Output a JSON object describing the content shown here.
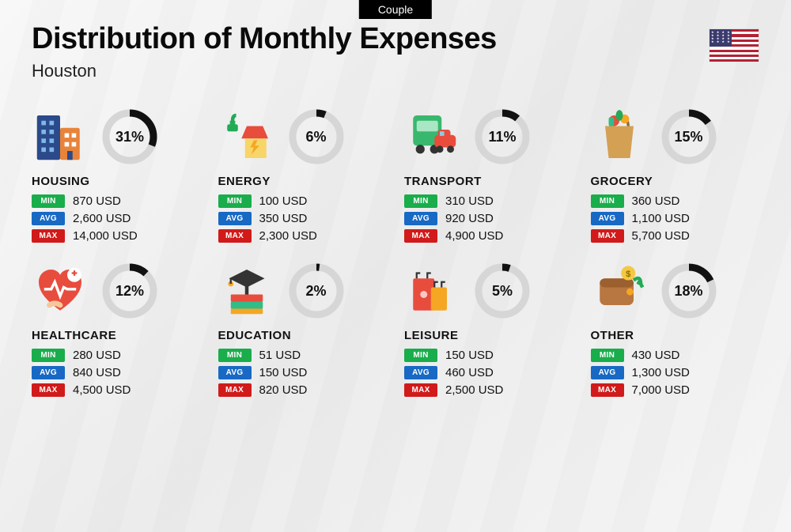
{
  "badge_label": "Couple",
  "title": "Distribution of Monthly Expenses",
  "subtitle": "Houston",
  "country": "United States",
  "badge_labels": {
    "min": "MIN",
    "avg": "AVG",
    "max": "MAX"
  },
  "currency": "USD",
  "donut": {
    "track_color": "#d6d6d6",
    "fill_color": "#111111",
    "stroke_width": 9,
    "radius": 30
  },
  "badge_colors": {
    "min": "#1aad4b",
    "avg": "#1769c4",
    "max": "#d11a1a"
  },
  "background": "#f2f2f2",
  "text_color": "#111111",
  "categories": [
    {
      "name": "HOUSING",
      "percent": 31,
      "min": "870",
      "avg": "2,600",
      "max": "14,000",
      "icon": "buildings"
    },
    {
      "name": "ENERGY",
      "percent": 6,
      "min": "100",
      "avg": "350",
      "max": "2,300",
      "icon": "energy"
    },
    {
      "name": "TRANSPORT",
      "percent": 11,
      "min": "310",
      "avg": "920",
      "max": "4,900",
      "icon": "transport"
    },
    {
      "name": "GROCERY",
      "percent": 15,
      "min": "360",
      "avg": "1,100",
      "max": "5,700",
      "icon": "grocery"
    },
    {
      "name": "HEALTHCARE",
      "percent": 12,
      "min": "280",
      "avg": "840",
      "max": "4,500",
      "icon": "healthcare"
    },
    {
      "name": "EDUCATION",
      "percent": 2,
      "min": "51",
      "avg": "150",
      "max": "820",
      "icon": "education"
    },
    {
      "name": "LEISURE",
      "percent": 5,
      "min": "150",
      "avg": "460",
      "max": "2,500",
      "icon": "leisure"
    },
    {
      "name": "OTHER",
      "percent": 18,
      "min": "430",
      "avg": "1,300",
      "max": "7,000",
      "icon": "other"
    }
  ]
}
